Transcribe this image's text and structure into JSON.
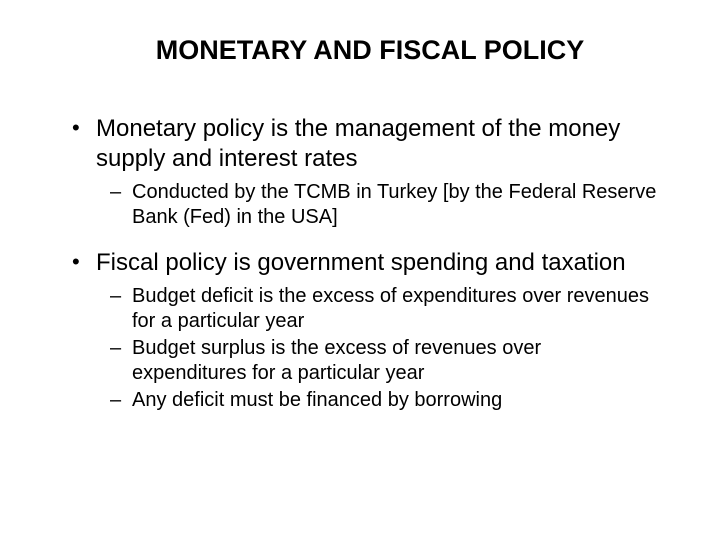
{
  "slide": {
    "title": "MONETARY AND FISCAL POLICY",
    "bullets": [
      {
        "text": "Monetary policy is the management of the money supply and interest rates",
        "subs": [
          "Conducted by the TCMB in Turkey [by the Federal Reserve Bank (Fed) in the USA]"
        ]
      },
      {
        "text": "Fiscal policy is government spending and taxation",
        "subs": [
          "Budget deficit is the excess of expenditures over revenues for a particular year",
          "Budget surplus is the excess of revenues over expenditures for a particular year",
          "Any deficit must be financed by borrowing"
        ]
      }
    ],
    "colors": {
      "background": "#ffffff",
      "text": "#000000"
    },
    "typography": {
      "title_fontsize": 27,
      "title_weight": "bold",
      "bullet_fontsize": 24,
      "sub_fontsize": 20,
      "font_family": "Arial"
    }
  }
}
